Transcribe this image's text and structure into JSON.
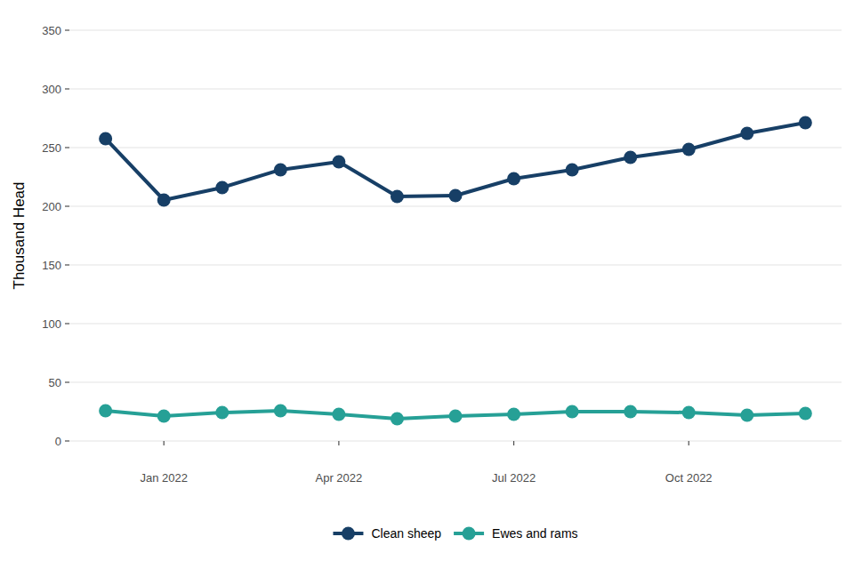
{
  "chart_data": {
    "type": "line",
    "categories": [
      null,
      "Jan 2022",
      null,
      null,
      "Apr 2022",
      null,
      null,
      "Jul 2022",
      null,
      null,
      "Oct 2022",
      null,
      null
    ],
    "y_label": "Thousand Head",
    "series": [
      {
        "name": "Clean sheep",
        "color": "#173f66",
        "marker": "circle",
        "values": [
          257.6,
          205.3,
          215.9,
          231.1,
          237.9,
          208.3,
          209.1,
          223.5,
          231.1,
          241.7,
          248.5,
          262.1,
          271.2
        ]
      },
      {
        "name": "Ewes and rams",
        "color": "#26a096",
        "marker": "circle",
        "values": [
          25.8,
          21.2,
          24.2,
          25.8,
          22.7,
          18.9,
          21.2,
          22.7,
          25.0,
          25.0,
          24.2,
          22.0,
          23.5
        ]
      }
    ],
    "ylim": [
      0,
      350
    ],
    "yticks": [
      0,
      50,
      100,
      150,
      200,
      250,
      300,
      350
    ],
    "grid": true,
    "legend": "bottom"
  }
}
